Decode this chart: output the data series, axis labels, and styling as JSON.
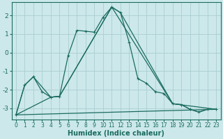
{
  "xlabel": "Humidex (Indice chaleur)",
  "background_color": "#cce8ea",
  "grid_color": "#aacdd2",
  "line_color": "#1a6b60",
  "xlim": [
    -0.5,
    23.5
  ],
  "ylim": [
    -3.6,
    2.7
  ],
  "yticks": [
    -3,
    -2,
    -1,
    0,
    1,
    2
  ],
  "xticks": [
    0,
    1,
    2,
    3,
    4,
    5,
    6,
    7,
    8,
    9,
    10,
    11,
    12,
    13,
    14,
    15,
    16,
    17,
    18,
    19,
    20,
    21,
    22,
    23
  ],
  "series1_x": [
    0,
    1,
    2,
    3,
    4,
    5,
    6,
    7,
    8,
    9,
    10,
    11,
    12,
    13,
    14,
    15,
    16,
    17,
    18,
    19,
    20,
    21,
    22,
    23
  ],
  "series1_y": [
    -3.35,
    -1.75,
    -1.3,
    -2.1,
    -2.4,
    -2.35,
    -0.15,
    1.2,
    1.15,
    1.1,
    1.9,
    2.45,
    2.15,
    0.55,
    -1.4,
    -1.65,
    -2.1,
    -2.2,
    -2.75,
    -2.8,
    -3.05,
    -3.2,
    -3.05,
    -3.05
  ],
  "series2_x": [
    0,
    1,
    2,
    4,
    5,
    11,
    12,
    18,
    19,
    20,
    21,
    22,
    23
  ],
  "series2_y": [
    -3.35,
    -1.75,
    -1.3,
    -2.4,
    -2.35,
    2.45,
    2.15,
    -2.75,
    -2.8,
    -3.05,
    -3.2,
    -3.05,
    -3.05
  ],
  "series3_x": [
    0,
    4,
    5,
    11,
    18,
    23
  ],
  "series3_y": [
    -3.35,
    -2.4,
    -2.35,
    2.45,
    -2.75,
    -3.05
  ],
  "series4_x": [
    0,
    23
  ],
  "series4_y": [
    -3.35,
    -3.05
  ],
  "linewidth": 0.9,
  "markersize": 3.0,
  "font_size_label": 7,
  "font_size_tick": 6
}
